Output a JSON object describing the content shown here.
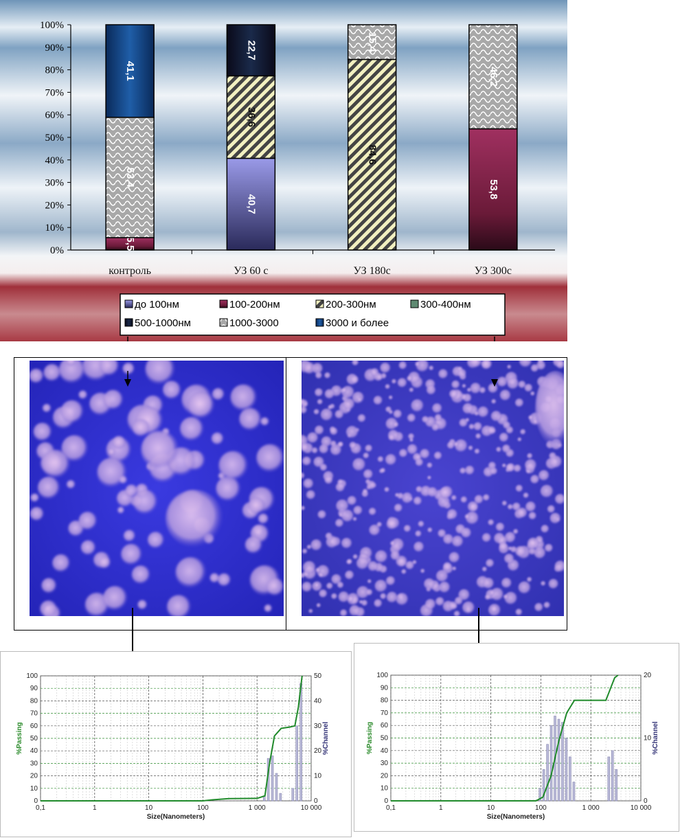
{
  "chart_data": [
    {
      "type": "bar",
      "stacked": true,
      "categories": [
        "контроль",
        "УЗ  60 с",
        "УЗ 180с",
        "УЗ  300с"
      ],
      "ylim": [
        0,
        100
      ],
      "y_ticks": [
        "0%",
        "10%",
        "20%",
        "30%",
        "40%",
        "50%",
        "60%",
        "70%",
        "80%",
        "90%",
        "100%"
      ],
      "legend_placement": "bottom",
      "legend": [
        {
          "label": "до 100нм",
          "color": "#8a8acc"
        },
        {
          "label": "100-200нм",
          "color": "#7a1f3d"
        },
        {
          "label": "200-300нм",
          "color": "#e8e6a0"
        },
        {
          "label": "300-400нм",
          "color": "#5f8a72"
        },
        {
          "label": "500-1000нм",
          "color": "#1a1a2e"
        },
        {
          "label": "1000-3000",
          "color": "#b8b8b8"
        },
        {
          "label": "3000 и более",
          "color": "#1f5ea8"
        }
      ],
      "stacks": [
        [
          {
            "series": "100-200нм",
            "value": 5.5,
            "label": "5,5"
          },
          {
            "series": "1000-3000",
            "value": 53.4,
            "label": "53,4"
          },
          {
            "series": "3000 и более",
            "value": 41.1,
            "label": "41,1"
          }
        ],
        [
          {
            "series": "до 100нм",
            "value": 40.7,
            "label": "40,7"
          },
          {
            "series": "200-300нм",
            "value": 36.6,
            "label": "36,6"
          },
          {
            "series": "500-1000нм",
            "value": 22.7,
            "label": "22,7"
          }
        ],
        [
          {
            "series": "200-300нм",
            "value": 84.6,
            "label": "84,6"
          },
          {
            "series": "1000-3000",
            "value": 15.4,
            "label": "15,4"
          }
        ],
        [
          {
            "series": "100-200нм",
            "value": 53.8,
            "label": "53,8"
          },
          {
            "series": "1000-3000",
            "value": 46.2,
            "label": "46,2"
          }
        ]
      ]
    },
    {
      "type": "bar",
      "xscale": "log",
      "x_ticks": [
        "0,1",
        "1",
        "10",
        "100",
        "1 000",
        "10 000"
      ],
      "xlabel": "Size(Nanometers)",
      "ylabel": "%Passing",
      "ylabel_right": "%Channel",
      "ylim": [
        0,
        100
      ],
      "ylim_right": [
        0,
        50
      ],
      "y_ticks": [
        "0",
        "10",
        "20",
        "30",
        "40",
        "50",
        "60",
        "70",
        "80",
        "90",
        "100"
      ],
      "y_ticks_right": [
        "0",
        "10",
        "20",
        "30",
        "40",
        "50"
      ],
      "channel_bars": [
        {
          "size": 1380,
          "value": 2
        },
        {
          "size": 1640,
          "value": 17
        },
        {
          "size": 1950,
          "value": 18
        },
        {
          "size": 2320,
          "value": 11
        },
        {
          "size": 2750,
          "value": 3
        },
        {
          "size": 4650,
          "value": 5
        },
        {
          "size": 5530,
          "value": 30
        },
        {
          "size": 6580,
          "value": 47
        }
      ],
      "passing_curve": [
        [
          0.1,
          0
        ],
        [
          100,
          0
        ],
        [
          150,
          0.8
        ],
        [
          300,
          1.8
        ],
        [
          1000,
          2
        ],
        [
          1400,
          4
        ],
        [
          1700,
          30
        ],
        [
          2100,
          52
        ],
        [
          2800,
          58
        ],
        [
          4000,
          59
        ],
        [
          5000,
          60
        ],
        [
          5800,
          75
        ],
        [
          6800,
          100
        ]
      ]
    },
    {
      "type": "bar",
      "xscale": "log",
      "x_ticks": [
        "0,1",
        "1",
        "10",
        "100",
        "1 000",
        "10 000"
      ],
      "xlabel": "Size(Nanometers)",
      "ylabel": "%Passing",
      "ylabel_right": "%Channel",
      "ylim": [
        0,
        100
      ],
      "ylim_right": [
        0,
        20
      ],
      "y_ticks": [
        "0",
        "10",
        "20",
        "30",
        "40",
        "50",
        "60",
        "70",
        "80",
        "90",
        "100"
      ],
      "y_ticks_right": [
        "0",
        "10",
        "20"
      ],
      "channel_bars": [
        {
          "size": 98,
          "value": 2
        },
        {
          "size": 116,
          "value": 5
        },
        {
          "size": 138,
          "value": 9
        },
        {
          "size": 164,
          "value": 12
        },
        {
          "size": 195,
          "value": 13.5
        },
        {
          "size": 232,
          "value": 13
        },
        {
          "size": 276,
          "value": 12.5
        },
        {
          "size": 328,
          "value": 10
        },
        {
          "size": 390,
          "value": 7
        },
        {
          "size": 464,
          "value": 3
        },
        {
          "size": 2320,
          "value": 7
        },
        {
          "size": 2750,
          "value": 8
        },
        {
          "size": 3270,
          "value": 5
        }
      ],
      "passing_curve": [
        [
          0.1,
          0
        ],
        [
          80,
          0
        ],
        [
          110,
          3
        ],
        [
          160,
          20
        ],
        [
          230,
          48
        ],
        [
          330,
          70
        ],
        [
          470,
          80
        ],
        [
          700,
          80
        ],
        [
          2000,
          80
        ],
        [
          2500,
          90
        ],
        [
          3000,
          98
        ],
        [
          3500,
          100
        ]
      ]
    }
  ]
}
